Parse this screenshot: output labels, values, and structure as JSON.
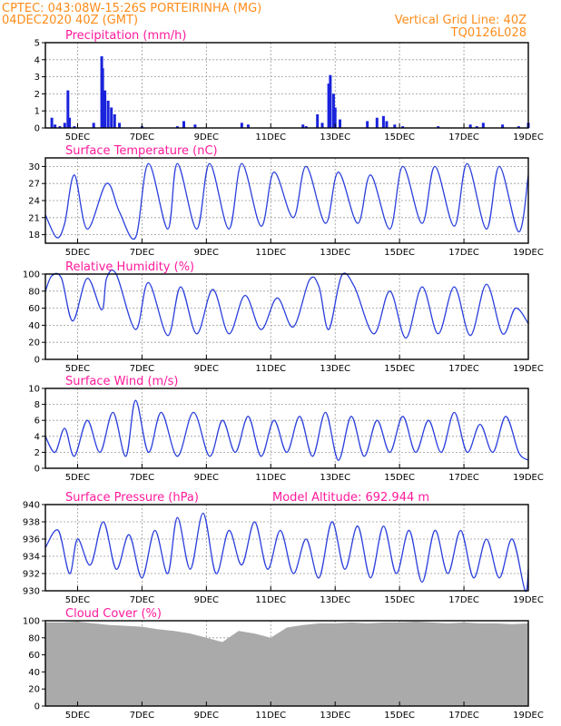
{
  "header": {
    "line1": "CPTEC:   043:08W-15:26S   PORTEIRINHA (MG)",
    "line2": "04DEC2020 40Z (GMT)",
    "right1": "Vertical Grid Line: 40Z",
    "right2": "TQ0126L028"
  },
  "x_labels": [
    "5DEC",
    "7DEC",
    "9DEC",
    "11DEC",
    "13DEC",
    "15DEC",
    "17DEC",
    "19DEC"
  ],
  "colors": {
    "line": "#2a3fdc",
    "bar": "#1a23dc",
    "cloud": "#aaaaaa",
    "title": "#ff1a9c",
    "header": "#ff8c1a"
  },
  "chart_data": [
    {
      "type": "bar",
      "title": "Precipitation (mm/h)",
      "ylim": [
        0,
        5
      ],
      "yticks": [
        0,
        1,
        2,
        3,
        4,
        5
      ],
      "x": [
        4.2,
        4.3,
        4.45,
        4.6,
        4.7,
        4.75,
        4.9,
        5.5,
        5.75,
        5.78,
        5.85,
        5.95,
        6.05,
        6.15,
        6.3,
        7.0,
        8.1,
        8.3,
        8.65,
        10.1,
        10.3,
        12.0,
        12.1,
        12.45,
        12.6,
        12.8,
        12.85,
        12.95,
        13.0,
        13.15,
        14.0,
        14.3,
        14.5,
        14.6,
        14.85,
        15.1,
        16.2,
        17.2,
        17.4,
        17.6,
        18.2,
        18.7,
        19.0
      ],
      "values": [
        0.6,
        0.2,
        0.1,
        0.3,
        2.2,
        0.6,
        0.1,
        0.3,
        4.2,
        3.5,
        2.2,
        1.6,
        1.2,
        0.8,
        0.3,
        0.1,
        0.1,
        0.4,
        0.2,
        0.3,
        0.2,
        0.2,
        0.1,
        0.8,
        0.3,
        2.6,
        3.1,
        2.0,
        1.2,
        0.5,
        0.4,
        0.6,
        0.7,
        0.4,
        0.2,
        0.1,
        0.1,
        0.2,
        0.1,
        0.3,
        0.2,
        0.1,
        0.3
      ]
    },
    {
      "type": "line",
      "title": "Surface Temperature (nC)",
      "ylim": [
        16.5,
        31.5
      ],
      "yticks": [
        18,
        21,
        24,
        27,
        30
      ],
      "x": [
        4.0,
        4.35,
        4.6,
        4.9,
        5.3,
        5.9,
        6.3,
        6.8,
        7.2,
        7.8,
        8.1,
        8.7,
        9.1,
        9.7,
        10.1,
        10.7,
        11.1,
        11.7,
        12.1,
        12.7,
        13.1,
        13.7,
        14.1,
        14.7,
        15.1,
        15.7,
        16.1,
        16.7,
        17.1,
        17.7,
        18.1,
        18.7,
        19.0
      ],
      "values": [
        21.5,
        17.5,
        20,
        28.5,
        19,
        27,
        22,
        17.5,
        30.5,
        19,
        30.5,
        19,
        30.5,
        19,
        30.5,
        19.5,
        29,
        21,
        30,
        20,
        29,
        20,
        28.5,
        19,
        30,
        20,
        30,
        19.5,
        30.5,
        19,
        30,
        18.5,
        28.5
      ]
    },
    {
      "type": "line",
      "title": "Relative Humidity (%)",
      "ylim": [
        0,
        100
      ],
      "yticks": [
        0,
        20,
        40,
        60,
        80,
        100
      ],
      "x": [
        4.0,
        4.2,
        4.5,
        4.85,
        5.3,
        5.75,
        5.9,
        6.2,
        6.8,
        7.2,
        7.8,
        8.2,
        8.7,
        9.2,
        9.7,
        10.2,
        10.7,
        11.2,
        11.7,
        12.2,
        12.5,
        12.8,
        13.2,
        13.6,
        14.2,
        14.7,
        15.2,
        15.7,
        16.2,
        16.7,
        17.2,
        17.7,
        18.2,
        18.6,
        19.0
      ],
      "values": [
        80,
        98,
        95,
        45,
        95,
        58,
        95,
        100,
        35,
        90,
        28,
        85,
        30,
        82,
        30,
        75,
        35,
        72,
        38,
        93,
        85,
        35,
        98,
        85,
        30,
        80,
        25,
        85,
        30,
        85,
        28,
        88,
        30,
        60,
        42
      ]
    },
    {
      "type": "line",
      "title": "Surface Wind (m/s)",
      "ylim": [
        0,
        10
      ],
      "yticks": [
        0,
        2,
        4,
        6,
        8,
        10
      ],
      "x": [
        4.0,
        4.3,
        4.6,
        4.9,
        5.3,
        5.7,
        6.1,
        6.5,
        6.8,
        7.2,
        7.6,
        8.1,
        8.6,
        9.1,
        9.5,
        9.9,
        10.3,
        10.7,
        11.1,
        11.5,
        11.9,
        12.3,
        12.7,
        13.1,
        13.5,
        13.9,
        14.3,
        14.7,
        15.1,
        15.5,
        15.9,
        16.3,
        16.7,
        17.1,
        17.5,
        17.9,
        18.3,
        18.7,
        19.0
      ],
      "values": [
        4,
        2,
        5,
        1.5,
        6,
        2,
        7,
        1.5,
        8.5,
        2,
        7,
        1.5,
        7,
        1.5,
        6,
        2,
        6.5,
        1.5,
        6,
        2,
        6.5,
        1.5,
        7,
        1,
        6.5,
        1.5,
        6,
        2,
        6.5,
        2,
        6,
        2,
        7,
        2,
        5.5,
        2,
        6.5,
        2,
        1
      ]
    },
    {
      "type": "line",
      "title": "Surface Pressure (hPa)",
      "annotation": "Model Altitude: 692.944 m",
      "ylim": [
        930,
        940
      ],
      "yticks": [
        930,
        932,
        934,
        936,
        938,
        940
      ],
      "x": [
        4.0,
        4.4,
        4.75,
        5.0,
        5.4,
        5.8,
        6.2,
        6.6,
        7.0,
        7.4,
        7.8,
        8.1,
        8.5,
        8.9,
        9.3,
        9.7,
        10.1,
        10.5,
        10.9,
        11.3,
        11.7,
        12.1,
        12.5,
        12.9,
        13.3,
        13.7,
        14.1,
        14.5,
        14.9,
        15.3,
        15.7,
        16.1,
        16.5,
        16.9,
        17.3,
        17.7,
        18.1,
        18.5,
        18.9,
        19.0
      ],
      "values": [
        935,
        937,
        932,
        936,
        933,
        938,
        932.5,
        936.5,
        931.5,
        937,
        932,
        938.5,
        932.5,
        939,
        932,
        937,
        933,
        938,
        932.5,
        937,
        932,
        936,
        931.5,
        938,
        932.5,
        937.5,
        931.5,
        937.5,
        932,
        937,
        931,
        937,
        932,
        937,
        931.5,
        936,
        931.5,
        936,
        930,
        932.5
      ]
    },
    {
      "type": "area",
      "title": "Cloud Cover (%)",
      "ylim": [
        0,
        100
      ],
      "yticks": [
        0,
        20,
        40,
        60,
        80,
        100
      ],
      "x": [
        4.0,
        4.5,
        5.0,
        5.5,
        6.0,
        6.5,
        7.0,
        7.5,
        8.0,
        8.5,
        9.0,
        9.5,
        10.0,
        10.5,
        11.0,
        11.5,
        12.0,
        12.5,
        13.0,
        13.5,
        14.0,
        14.5,
        15.0,
        15.5,
        16.0,
        16.5,
        17.0,
        17.5,
        18.0,
        18.5,
        19.0
      ],
      "values": [
        98,
        98,
        99,
        97,
        95,
        94,
        93,
        90,
        88,
        85,
        80,
        75,
        88,
        85,
        80,
        92,
        95,
        97,
        97,
        98,
        97,
        98,
        98,
        99,
        98,
        97,
        98,
        97,
        97,
        96,
        97
      ]
    }
  ]
}
